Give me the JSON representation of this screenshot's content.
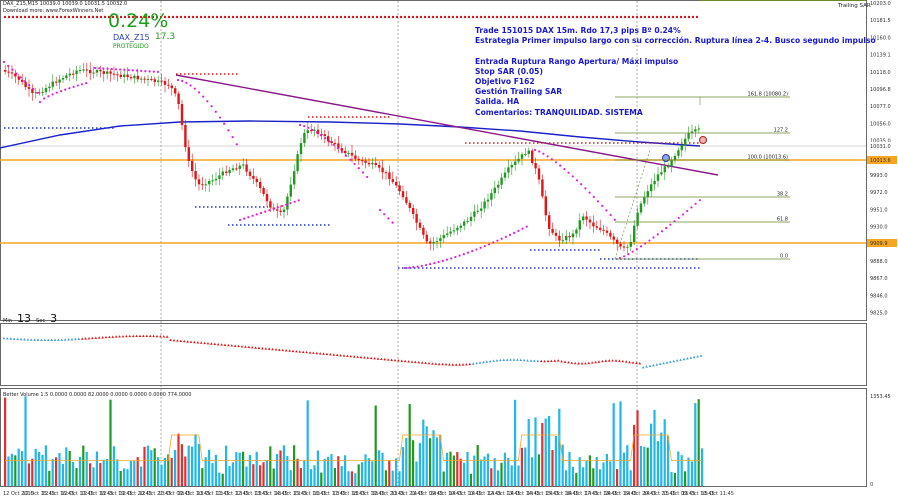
{
  "window": {
    "title_line": "DAX_Z15,M15  10039.0 10039.0 10031.5 10032.0",
    "source_line": "Download more: www.ForexWinners.Net",
    "trailing_label": "Trailing SAR"
  },
  "stats": {
    "pct": "0.24%",
    "symbol": "DAX_Z15",
    "value": "17.3",
    "status": "PROTEGIDO"
  },
  "notes": [
    "Trade 151015 DAX 15m. Rdo 17,3 pips Bº 0.24%",
    "Estrategia Primer impulso largo con su corrección. Ruptura línea 2-4.  Busco segundo impulso",
    "",
    "Entrada Ruptura Rango Apertura/ Máxi impulso",
    "Stop SAR (0.05)",
    "Objetivo F162",
    "Gestión Trailing SAR",
    "Salida. HA",
    "Comentarios: TRANQUILIDAD. SISTEMA"
  ],
  "timer": {
    "min_label": "Min",
    "min_value": "13",
    "sec_label": "Sec",
    "sec_value": "3"
  },
  "volume_info": "Better Volume 1.5 0.0000 0.0000 82.0000 0.0000 0.0000 0.0000 774.0000",
  "price_axis": {
    "labels": [
      "10203.0",
      "10181.5",
      "10160.0",
      "10139.1",
      "10118.0",
      "10096.8",
      "10077.0",
      "10056.0",
      "10035.0",
      "10013.6",
      "9993.0",
      "9972.0",
      "9951.0",
      "9930.0",
      "9909.1",
      "9888.0",
      "9867.0",
      "9846.0",
      "9825.0"
    ],
    "current_price": "10031.0",
    "orange_tag_1": "10013.6",
    "orange_tag_2": "9909.9"
  },
  "volume_axis": {
    "top": "1353.45",
    "bottom": "0"
  },
  "fib_labels": {
    "f161": "161.8 (10080.2)",
    "f127": "127.2",
    "f100": "100.0 (10013.6)",
    "f38": "38.2",
    "f61": "61.8",
    "f0": "0.0"
  },
  "time_axis": [
    "12 Oct 2015",
    "12 Oct 15:45",
    "12 Oct 16:45",
    "12 Oct 17:45",
    "12 Oct 18:45",
    "12 Oct 19:45",
    "12 Oct 20:45",
    "12 Oct 21:45",
    "13 Oct 09:45",
    "13 Oct 10:45",
    "13 Oct 11:45",
    "13 Oct 12:45",
    "13 Oct 13:45",
    "13 Oct 14:45",
    "13 Oct 15:45",
    "13 Oct 16:45",
    "13 Oct 17:45",
    "13 Oct 18:45",
    "13 Oct 19:45",
    "13 Oct 20:45",
    "13 Oct 21:45",
    "14 Oct 09:45",
    "14 Oct 10:45",
    "14 Oct 11:45",
    "14 Oct 12:45",
    "14 Oct 13:45",
    "14 Oct 14:45",
    "14 Oct 15:45",
    "14 Oct 16:45",
    "14 Oct 17:45",
    "14 Oct 18:45",
    "14 Oct 19:45",
    "14 Oct 20:45",
    "14 Oct 21:45",
    "15 Oct 09:45",
    "15 Oct 10:45",
    "15 Oct 11:45"
  ],
  "colors": {
    "bull": "#1f9a1f",
    "bear": "#e01515",
    "sar": "#e020d8",
    "ma": "#1a22c8",
    "trendline": "#8a1a8a",
    "orange": "#f5a623",
    "fib": "#6a8a2a",
    "dotted_red": "#e01515",
    "dotted_blue": "#2233cc"
  }
}
